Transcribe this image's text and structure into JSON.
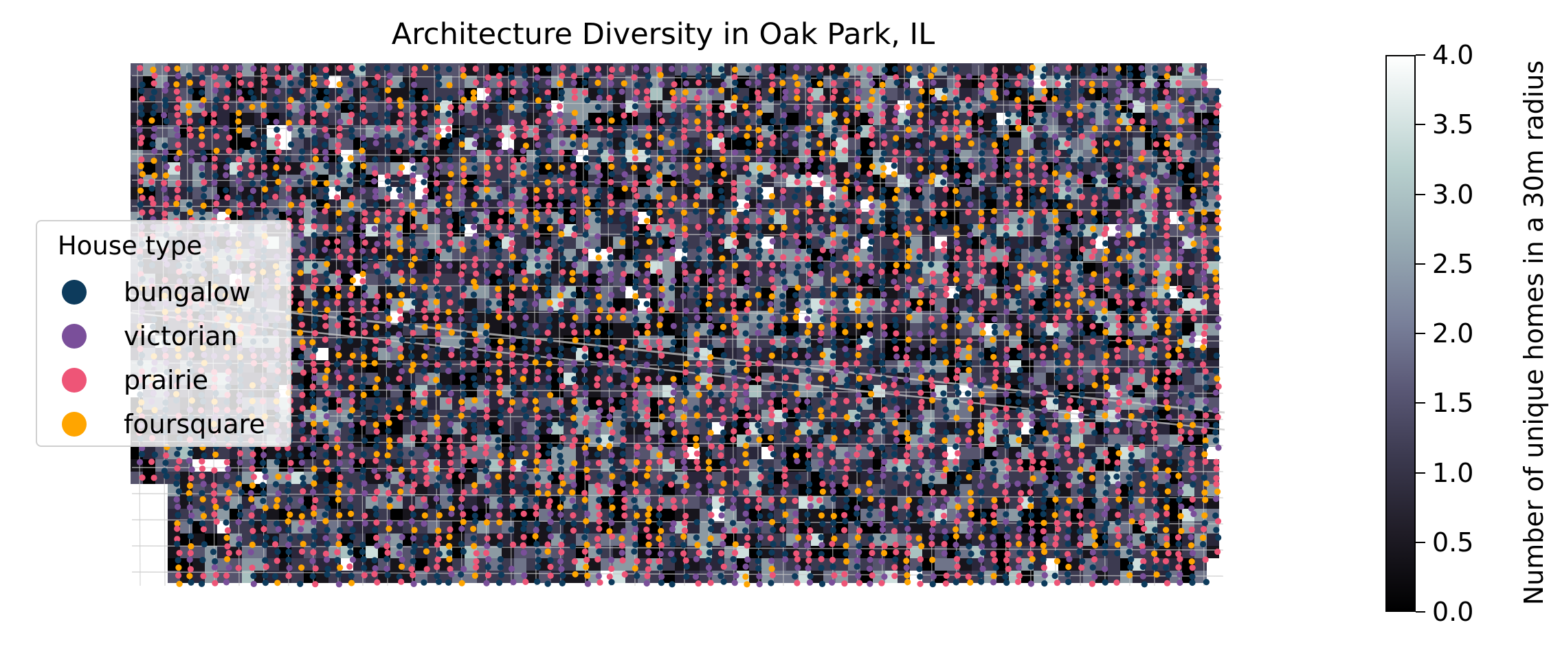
{
  "title": "Architecture Diversity in Oak Park, IL",
  "legend": {
    "title": "House type",
    "items": [
      {
        "label": "bungalow",
        "color": "#0d3b5c"
      },
      {
        "label": "victorian",
        "color": "#7a4f9a"
      },
      {
        "label": "prairie",
        "color": "#ee5577"
      },
      {
        "label": "foursquare",
        "color": "#ffa500"
      }
    ]
  },
  "colorbar": {
    "label": "Number of unique homes in a 30m radius",
    "range": [
      0.0,
      4.0
    ],
    "ticks": [
      "0.0",
      "0.5",
      "1.0",
      "1.5",
      "2.0",
      "2.5",
      "3.0",
      "3.5",
      "4.0"
    ],
    "colormap": "bone-like (black → slate purple → grey-teal → white)"
  },
  "map_colors": {
    "street_lines": "#c8c8c8",
    "background": "#ffffff"
  }
}
